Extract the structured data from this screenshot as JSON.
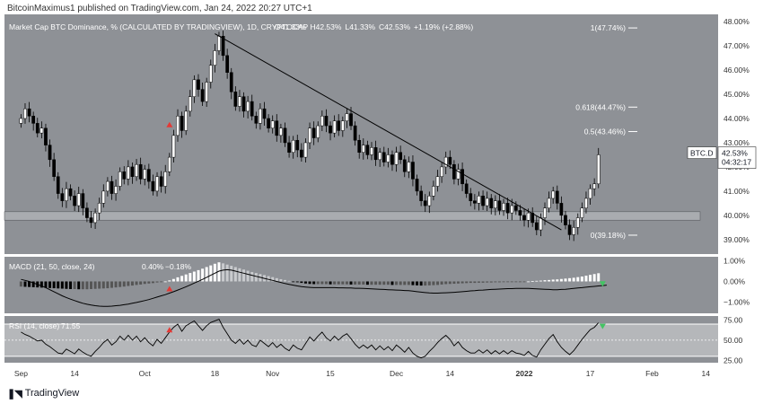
{
  "publisher_line": "BitcoinMaximus1 published on TradingView.com, Jan 24, 2022 20:27 UTC+1",
  "footer": {
    "brand": "TradingView",
    "logo": "tradingview-logo-icon"
  },
  "colors": {
    "panel_bg": "#8e9196",
    "candle_up": "#ffffff",
    "candle_down": "#000000",
    "axis_text": "#333333",
    "support_band": "#a9acb0",
    "rsi_band": "#b5b7ba",
    "signal_red": "#e53935",
    "signal_green": "#43c463",
    "price_tag_bg": "#ffffff"
  },
  "chart_data": [
    {
      "type": "candlestick",
      "title": "Market Cap BTC Dominance, % (CALCULATED BY TRADINGVIEW), 1D, CRYPTOCAP",
      "ohlc_readout": {
        "o_label": "O",
        "o": "41.33%",
        "h_label": "H",
        "h": "42.53%",
        "l_label": "L",
        "l": "41.33%",
        "c_label": "C",
        "c": "42.53%",
        "change": "+1.19% (+2.88%)"
      },
      "y_ticks": [
        "48.00%",
        "47.00%",
        "46.00%",
        "45.00%",
        "44.00%",
        "43.00%",
        "42.00%",
        "41.00%",
        "40.00%",
        "39.00%"
      ],
      "ylim": [
        38.4,
        48.3
      ],
      "x_ticks": [
        "Sep",
        "14",
        "Oct",
        "18",
        "Nov",
        "15",
        "Dec",
        "14",
        "2022",
        "17",
        "Feb",
        "14"
      ],
      "x_tick_days": [
        0,
        13,
        30,
        47,
        61,
        75,
        91,
        104,
        122,
        138,
        153,
        166
      ],
      "x_tick_bold": [
        false,
        false,
        false,
        false,
        false,
        false,
        false,
        false,
        true,
        false,
        false,
        false
      ],
      "day_range": [
        -4,
        169
      ],
      "series_close": [
        44.0,
        44.4,
        44.1,
        43.8,
        43.4,
        43.6,
        42.9,
        42.3,
        41.6,
        40.9,
        40.6,
        41.1,
        40.8,
        40.4,
        40.9,
        40.3,
        39.9,
        39.7,
        40.1,
        40.5,
        41.0,
        41.4,
        40.9,
        41.2,
        41.8,
        41.5,
        42.0,
        41.6,
        42.1,
        41.5,
        41.9,
        41.4,
        41.0,
        41.6,
        41.2,
        41.8,
        42.4,
        43.3,
        44.1,
        43.5,
        44.3,
        44.9,
        45.6,
        45.2,
        44.7,
        45.5,
        46.2,
        46.8,
        47.4,
        46.6,
        45.9,
        45.1,
        44.5,
        44.9,
        44.3,
        44.7,
        44.1,
        43.8,
        44.4,
        44.0,
        43.6,
        43.9,
        43.3,
        43.6,
        43.0,
        42.6,
        43.1,
        42.7,
        42.4,
        43.0,
        43.6,
        43.2,
        43.7,
        44.1,
        43.7,
        43.4,
        43.9,
        43.5,
        43.9,
        44.2,
        43.7,
        43.1,
        42.6,
        42.9,
        42.5,
        42.8,
        42.3,
        42.6,
        42.2,
        42.5,
        42.1,
        42.6,
        42.3,
        41.8,
        42.2,
        41.5,
        41.0,
        40.6,
        40.4,
        40.8,
        41.2,
        41.6,
        42.0,
        42.4,
        42.1,
        41.5,
        41.9,
        41.3,
        40.9,
        40.6,
        40.5,
        40.8,
        40.4,
        40.7,
        40.3,
        40.6,
        40.2,
        40.5,
        40.1,
        40.4,
        40.2,
        40.0,
        39.8,
        40.1,
        39.7,
        39.4,
        39.9,
        40.3,
        40.7,
        41.0,
        40.5,
        40.0,
        39.6,
        39.2,
        39.5,
        39.9,
        40.3,
        40.7,
        41.1,
        41.3,
        42.5
      ],
      "fib_levels": [
        {
          "label": "1(47.74%)",
          "value": 47.74
        },
        {
          "label": "0.618(44.47%)",
          "value": 44.47
        },
        {
          "label": "0.5(43.46%)",
          "value": 43.46
        },
        {
          "label": "0(39.18%)",
          "value": 39.18
        }
      ],
      "support_zone": [
        39.8,
        40.15
      ],
      "trendline": {
        "start_day": 47,
        "start_value": 47.5,
        "end_day": 131,
        "end_value": 39.4
      },
      "signals": [
        {
          "day": 36,
          "value": 43.75,
          "direction": "up",
          "color": "red"
        }
      ],
      "price_tag": {
        "symbol": "BTC.D",
        "value": "42.53%",
        "countdown": "04:32:17",
        "price": 42.53
      }
    },
    {
      "type": "bar",
      "title": "MACD (21, 50, close, 24)",
      "readout": [
        "0.40%",
        "−0.18%"
      ],
      "y_ticks": [
        "1.00%",
        "0.00%",
        "−1.00%"
      ],
      "y_tick_values": [
        1.0,
        0.0,
        -1.0
      ],
      "ylim": [
        -1.55,
        1.2
      ],
      "histogram": [
        -0.25,
        -0.26,
        -0.27,
        -0.28,
        -0.29,
        -0.3,
        -0.31,
        -0.32,
        -0.33,
        -0.34,
        -0.35,
        -0.36,
        -0.37,
        -0.37,
        -0.38,
        -0.38,
        -0.38,
        -0.37,
        -0.36,
        -0.35,
        -0.34,
        -0.33,
        -0.31,
        -0.29,
        -0.27,
        -0.25,
        -0.22,
        -0.2,
        -0.17,
        -0.15,
        -0.12,
        -0.1,
        -0.08,
        -0.05,
        -0.03,
        0.0,
        0.05,
        0.12,
        0.2,
        0.27,
        0.34,
        0.41,
        0.48,
        0.55,
        0.62,
        0.7,
        0.78,
        0.86,
        0.93,
        0.88,
        0.82,
        0.76,
        0.7,
        0.64,
        0.58,
        0.52,
        0.46,
        0.41,
        0.36,
        0.31,
        0.26,
        0.21,
        0.16,
        0.11,
        0.07,
        0.03,
        -0.01,
        -0.04,
        -0.07,
        -0.1,
        -0.12,
        -0.13,
        -0.13,
        -0.13,
        -0.13,
        -0.14,
        -0.14,
        -0.14,
        -0.14,
        -0.14,
        -0.15,
        -0.15,
        -0.15,
        -0.15,
        -0.16,
        -0.16,
        -0.16,
        -0.16,
        -0.16,
        -0.16,
        -0.17,
        -0.17,
        -0.17,
        -0.17,
        -0.17,
        -0.18,
        -0.19,
        -0.2,
        -0.2,
        -0.19,
        -0.18,
        -0.17,
        -0.15,
        -0.13,
        -0.12,
        -0.11,
        -0.1,
        -0.09,
        -0.08,
        -0.07,
        -0.07,
        -0.06,
        -0.06,
        -0.05,
        -0.05,
        -0.04,
        -0.04,
        -0.03,
        -0.03,
        -0.02,
        -0.02,
        -0.01,
        -0.01,
        0.0,
        0.02,
        0.03,
        0.04,
        0.06,
        0.07,
        0.09,
        0.1,
        0.12,
        0.14,
        0.16,
        0.18,
        0.21,
        0.24,
        0.28,
        0.32,
        0.36,
        0.4
      ],
      "line": [
        0.1,
        0.05,
        0.0,
        -0.07,
        -0.15,
        -0.22,
        -0.3,
        -0.4,
        -0.5,
        -0.6,
        -0.7,
        -0.78,
        -0.86,
        -0.93,
        -1.0,
        -1.06,
        -1.11,
        -1.15,
        -1.18,
        -1.2,
        -1.21,
        -1.21,
        -1.2,
        -1.18,
        -1.16,
        -1.13,
        -1.1,
        -1.06,
        -1.02,
        -0.98,
        -0.93,
        -0.88,
        -0.82,
        -0.76,
        -0.7,
        -0.64,
        -0.57,
        -0.5,
        -0.42,
        -0.34,
        -0.26,
        -0.17,
        -0.08,
        0.01,
        0.1,
        0.2,
        0.3,
        0.4,
        0.5,
        0.55,
        0.57,
        0.55,
        0.5,
        0.45,
        0.4,
        0.35,
        0.3,
        0.25,
        0.2,
        0.15,
        0.1,
        0.05,
        0.0,
        -0.05,
        -0.1,
        -0.14,
        -0.18,
        -0.22,
        -0.25,
        -0.27,
        -0.29,
        -0.3,
        -0.3,
        -0.3,
        -0.3,
        -0.3,
        -0.3,
        -0.31,
        -0.31,
        -0.32,
        -0.32,
        -0.33,
        -0.33,
        -0.34,
        -0.35,
        -0.36,
        -0.37,
        -0.38,
        -0.39,
        -0.4,
        -0.41,
        -0.42,
        -0.43,
        -0.44,
        -0.45,
        -0.47,
        -0.5,
        -0.52,
        -0.54,
        -0.56,
        -0.57,
        -0.57,
        -0.56,
        -0.55,
        -0.54,
        -0.53,
        -0.51,
        -0.5,
        -0.48,
        -0.46,
        -0.45,
        -0.43,
        -0.42,
        -0.4,
        -0.39,
        -0.38,
        -0.37,
        -0.36,
        -0.35,
        -0.35,
        -0.34,
        -0.34,
        -0.34,
        -0.34,
        -0.35,
        -0.36,
        -0.37,
        -0.38,
        -0.39,
        -0.4,
        -0.4,
        -0.39,
        -0.38,
        -0.36,
        -0.34,
        -0.32,
        -0.3,
        -0.28,
        -0.26,
        -0.24,
        -0.22,
        -0.2,
        -0.18
      ],
      "signals": [
        {
          "day": 36,
          "value": -0.35,
          "direction": "up",
          "color": "red"
        },
        {
          "day": 141,
          "value": -0.12,
          "direction": "down",
          "color": "green"
        }
      ]
    },
    {
      "type": "line",
      "title": "RSI (14, close)",
      "readout": "71.55",
      "y_ticks": [
        "75.00",
        "50.00",
        "25.00"
      ],
      "y_tick_values": [
        75,
        50,
        25
      ],
      "ylim": [
        22,
        80
      ],
      "band": [
        30,
        70
      ],
      "midline": 50,
      "values": [
        60,
        57,
        55,
        52,
        49,
        50,
        45,
        42,
        38,
        34,
        33,
        39,
        36,
        33,
        39,
        35,
        32,
        30,
        36,
        41,
        47,
        51,
        44,
        48,
        55,
        50,
        56,
        50,
        55,
        48,
        53,
        47,
        43,
        51,
        46,
        53,
        60,
        66,
        70,
        61,
        68,
        71,
        74,
        68,
        62,
        68,
        72,
        74,
        76,
        66,
        58,
        50,
        46,
        51,
        45,
        50,
        44,
        42,
        50,
        46,
        42,
        47,
        41,
        45,
        40,
        37,
        44,
        40,
        38,
        46,
        54,
        49,
        55,
        60,
        53,
        49,
        55,
        50,
        55,
        58,
        52,
        45,
        40,
        44,
        40,
        44,
        38,
        43,
        38,
        42,
        37,
        44,
        40,
        35,
        41,
        34,
        30,
        28,
        30,
        36,
        41,
        47,
        52,
        56,
        51,
        43,
        48,
        41,
        37,
        34,
        34,
        38,
        34,
        38,
        33,
        37,
        33,
        37,
        33,
        37,
        34,
        33,
        31,
        36,
        31,
        29,
        38,
        45,
        52,
        57,
        48,
        41,
        36,
        32,
        37,
        44,
        51,
        57,
        63,
        66,
        71.55
      ],
      "signals": [
        {
          "day": 36,
          "value": 63,
          "direction": "up",
          "color": "red"
        },
        {
          "day": 141,
          "value": 67,
          "direction": "down",
          "color": "green"
        }
      ]
    }
  ]
}
